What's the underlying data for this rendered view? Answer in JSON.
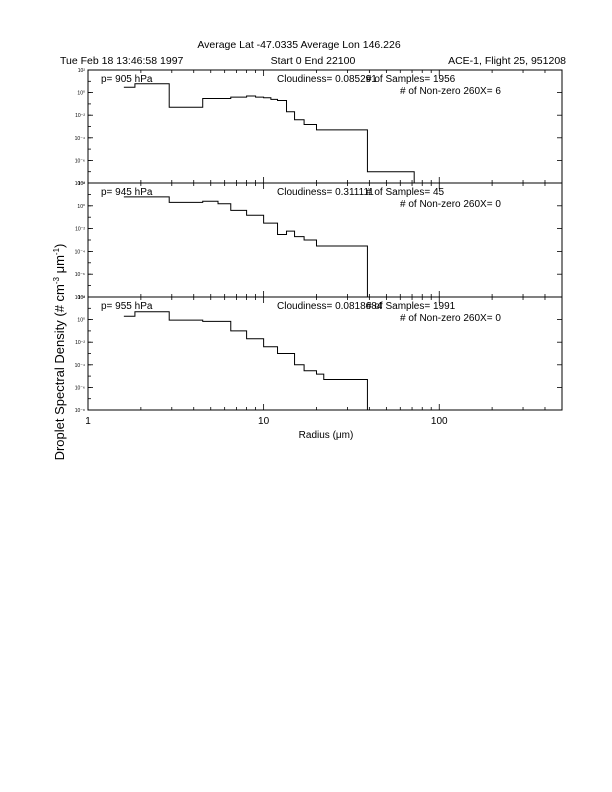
{
  "header": {
    "title": "Average Lat -47.0335  Average Lon  146.226",
    "date": "Tue Feb 18 13:46:58 1997",
    "range": "Start 0  End  22100",
    "flight": "ACE-1, Flight 25, 951208"
  },
  "chart_data": {
    "type": "line",
    "step": true,
    "xlabel": "Radius (μm)",
    "ylabel": "Droplet Spectral Density (# cm⁻³ μm⁻¹)",
    "ylabel_parts": {
      "base": "Droplet Spectral Density (# cm",
      "exp1": "-3",
      "mid": " μm",
      "exp2": "-1",
      "end": ")"
    },
    "xscale": "log",
    "yscale": "log",
    "xlim": [
      1,
      500
    ],
    "ylim": [
      1e-08,
      100.0
    ],
    "x_ticks": [
      1,
      10,
      100
    ],
    "x_tick_labels": [
      "1",
      "10",
      "100"
    ],
    "y_ticks": [
      1e-08,
      1e-06,
      0.0001,
      0.01,
      1,
      100
    ],
    "y_tick_labels": [
      "10⁻⁸",
      "10⁻⁶",
      "10⁻⁴",
      "10⁻²",
      "10⁰",
      "10²"
    ],
    "panels": [
      {
        "pressure": "p= 905 hPa",
        "cloudiness": "Cloudiness= 0.085291",
        "samples": "# of Samples= 1956",
        "nonzero": "# of Non-zero 260X= 6",
        "bin_edges": [
          1.6,
          1.85,
          2.9,
          4.5,
          6.5,
          8,
          9,
          10,
          11,
          12,
          13.5,
          15,
          17,
          20,
          39,
          72
        ],
        "values": [
          3.0,
          6.0,
          0.05,
          0.3,
          0.4,
          0.5,
          0.4,
          0.35,
          0.25,
          0.2,
          0.02,
          0.004,
          0.0015,
          0.0005,
          1e-07
        ]
      },
      {
        "pressure": "p= 945 hPa",
        "cloudiness": "Cloudiness= 0.311111",
        "samples": "# of Samples= 45",
        "nonzero": "# of Non-zero 260X= 0",
        "bin_edges": [
          1.6,
          1.85,
          2.9,
          4.5,
          5.5,
          6.5,
          8,
          10,
          12,
          13.5,
          15,
          17,
          20,
          39
        ],
        "values": [
          6.0,
          6.0,
          2.0,
          2.5,
          1.5,
          0.4,
          0.15,
          0.03,
          0.003,
          0.006,
          0.002,
          0.001,
          0.0003
        ]
      },
      {
        "pressure": "p= 955 hPa",
        "cloudiness": "Cloudiness= 0.0818684",
        "samples": "# of Samples= 1991",
        "nonzero": "# of Non-zero 260X= 0",
        "bin_edges": [
          1.6,
          1.85,
          2.9,
          4.5,
          6.5,
          8,
          10,
          12,
          15,
          17,
          20,
          22,
          39
        ],
        "values": [
          2.0,
          5.0,
          0.9,
          0.7,
          0.1,
          0.02,
          0.004,
          0.001,
          0.0001,
          3e-05,
          1.5e-05,
          5e-06
        ]
      }
    ]
  }
}
